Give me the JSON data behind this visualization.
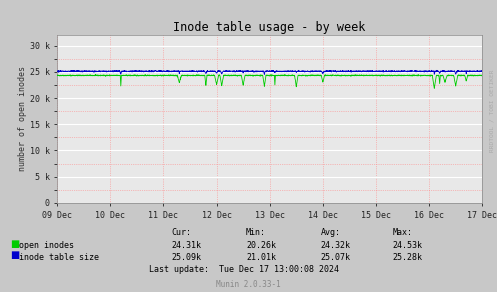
{
  "title": "Inode table usage - by week",
  "ylabel": "number of open inodes",
  "bg_color": "#c8c8c8",
  "plot_bg_color": "#e8e8e8",
  "grid_color_white": "#ffffff",
  "grid_color_pink": "#ff8888",
  "x_tick_labels": [
    "09 Dec",
    "10 Dec",
    "11 Dec",
    "12 Dec",
    "13 Dec",
    "14 Dec",
    "15 Dec",
    "16 Dec",
    "17 Dec"
  ],
  "ylim": [
    0,
    32000
  ],
  "yticks": [
    0,
    5000,
    10000,
    15000,
    20000,
    25000,
    30000
  ],
  "ytick_labels": [
    "0",
    "5 k",
    "10 k",
    "15 k",
    "20 k",
    "25 k",
    "30 k"
  ],
  "open_inodes_color": "#00cc00",
  "inode_table_color": "#0000cc",
  "watermark": "RRDTOOL / TOBI OETIKER",
  "munin_version": "Munin 2.0.33-1",
  "legend_labels": [
    "open inodes",
    "inode table size"
  ],
  "legend_colors": [
    "#00cc00",
    "#0000cc"
  ],
  "stat_headers": [
    "Cur:",
    "Min:",
    "Avg:",
    "Max:"
  ],
  "stat_open": [
    "24.31k",
    "20.26k",
    "24.32k",
    "24.53k"
  ],
  "stat_table": [
    "25.09k",
    "21.01k",
    "25.07k",
    "25.28k"
  ],
  "last_update": "Last update:  Tue Dec 17 13:00:08 2024"
}
